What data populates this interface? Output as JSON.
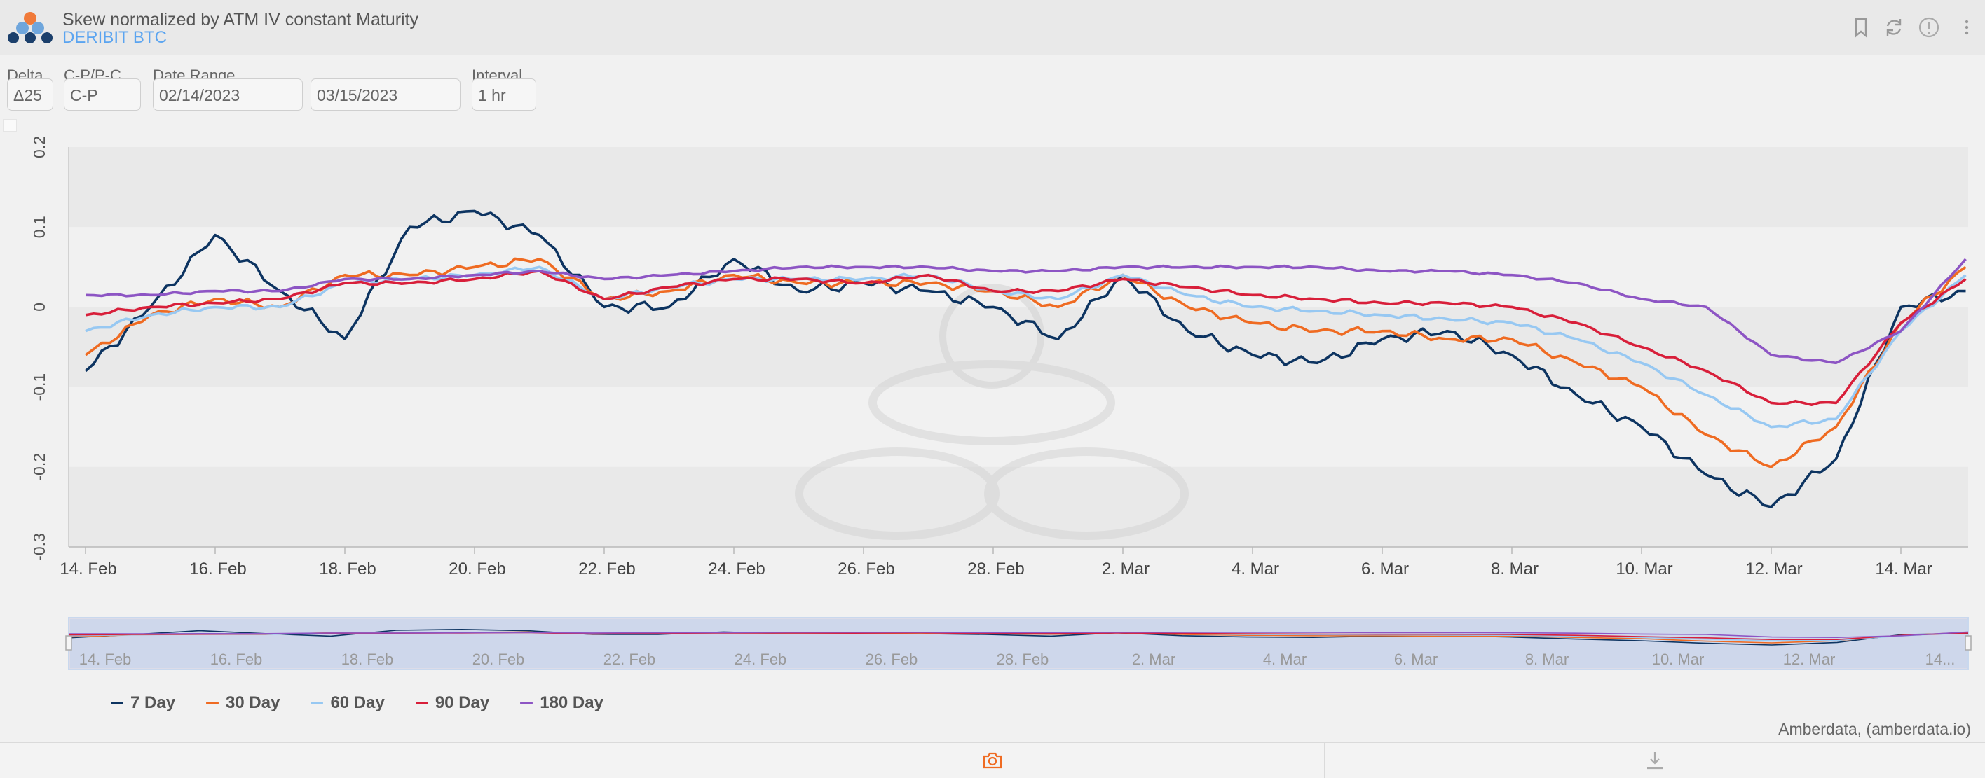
{
  "header": {
    "title": "Skew normalized by ATM IV constant Maturity",
    "subtitle": "DERIBIT BTC",
    "icons": [
      "bookmark-icon",
      "refresh-icon",
      "info-icon",
      "more-vertical-icon"
    ]
  },
  "controls": {
    "delta": {
      "label": "Delta",
      "value": "Δ25"
    },
    "cp": {
      "label": "C-P/P-C",
      "value": "C-P"
    },
    "date_range": {
      "label": "Date Range",
      "start": "02/14/2023",
      "end": "03/15/2023"
    },
    "interval": {
      "label": "Interval",
      "value": "1 hr"
    }
  },
  "chart_data": {
    "type": "line",
    "x_ticks": [
      "14. Feb",
      "16. Feb",
      "18. Feb",
      "20. Feb",
      "22. Feb",
      "24. Feb",
      "26. Feb",
      "28. Feb",
      "2. Mar",
      "4. Mar",
      "6. Mar",
      "8. Mar",
      "10. Mar",
      "12. Mar",
      "14. Mar"
    ],
    "y_ticks": [
      "0.2",
      "0.1",
      "0",
      "-0.1",
      "-0.2",
      "-0.3"
    ],
    "ylim": [
      -0.3,
      0.2
    ],
    "x_dates": [
      "2023-02-14",
      "2023-02-15",
      "2023-02-16",
      "2023-02-17",
      "2023-02-18",
      "2023-02-19",
      "2023-02-20",
      "2023-02-21",
      "2023-02-22",
      "2023-02-23",
      "2023-02-24",
      "2023-02-25",
      "2023-02-26",
      "2023-02-27",
      "2023-02-28",
      "2023-03-01",
      "2023-03-02",
      "2023-03-03",
      "2023-03-04",
      "2023-03-05",
      "2023-03-06",
      "2023-03-07",
      "2023-03-08",
      "2023-03-09",
      "2023-03-10",
      "2023-03-11",
      "2023-03-12",
      "2023-03-13",
      "2023-03-14",
      "2023-03-15"
    ],
    "series": [
      {
        "name": "7 Day",
        "color": "#0d3461",
        "values": [
          -0.08,
          0.0,
          0.09,
          0.02,
          -0.04,
          0.1,
          0.12,
          0.09,
          0.0,
          0.0,
          0.06,
          0.02,
          0.03,
          0.02,
          0.0,
          -0.04,
          0.04,
          -0.03,
          -0.06,
          -0.07,
          -0.04,
          -0.03,
          -0.06,
          -0.11,
          -0.15,
          -0.21,
          -0.25,
          -0.19,
          0.0,
          0.02
        ]
      },
      {
        "name": "30 Day",
        "color": "#ef6b22",
        "values": [
          -0.06,
          -0.01,
          0.01,
          0.0,
          0.04,
          0.04,
          0.05,
          0.06,
          0.01,
          0.02,
          0.04,
          0.03,
          0.03,
          0.03,
          0.02,
          0.0,
          0.04,
          0.0,
          -0.02,
          -0.03,
          -0.03,
          -0.04,
          -0.04,
          -0.07,
          -0.1,
          -0.16,
          -0.2,
          -0.15,
          -0.02,
          0.05
        ]
      },
      {
        "name": "60 Day",
        "color": "#97c8f2",
        "values": [
          -0.03,
          -0.01,
          0.0,
          0.0,
          0.03,
          0.035,
          0.04,
          0.05,
          0.01,
          0.025,
          0.035,
          0.035,
          0.035,
          0.04,
          0.02,
          0.01,
          0.04,
          0.015,
          0.0,
          -0.005,
          -0.01,
          -0.015,
          -0.02,
          -0.04,
          -0.07,
          -0.11,
          -0.15,
          -0.14,
          -0.03,
          0.04
        ]
      },
      {
        "name": "90 Day",
        "color": "#d81f3a",
        "values": [
          -0.01,
          0.0,
          0.005,
          0.01,
          0.03,
          0.03,
          0.035,
          0.045,
          0.01,
          0.025,
          0.035,
          0.035,
          0.03,
          0.04,
          0.02,
          0.02,
          0.035,
          0.025,
          0.015,
          0.01,
          0.005,
          0.005,
          0.0,
          -0.02,
          -0.05,
          -0.08,
          -0.12,
          -0.12,
          -0.02,
          0.035
        ]
      },
      {
        "name": "180 Day",
        "color": "#8d55c4",
        "values": [
          0.015,
          0.015,
          0.02,
          0.02,
          0.035,
          0.035,
          0.04,
          0.045,
          0.035,
          0.04,
          0.045,
          0.05,
          0.05,
          0.05,
          0.045,
          0.045,
          0.05,
          0.05,
          0.05,
          0.05,
          0.045,
          0.045,
          0.04,
          0.03,
          0.01,
          0.0,
          -0.06,
          -0.07,
          -0.03,
          0.06
        ]
      }
    ],
    "navigator_ticks": [
      "14. Feb",
      "16. Feb",
      "18. Feb",
      "20. Feb",
      "22. Feb",
      "24. Feb",
      "26. Feb",
      "28. Feb",
      "2. Mar",
      "4. Mar",
      "6. Mar",
      "8. Mar",
      "10. Mar",
      "12. Mar",
      "14..."
    ],
    "grid": "alternating horizontal bands",
    "legend_position": "bottom-left"
  },
  "credits": "Amberdata, (amberdata.io)",
  "footer": {
    "icons": [
      "camera-icon",
      "download-icon"
    ]
  }
}
